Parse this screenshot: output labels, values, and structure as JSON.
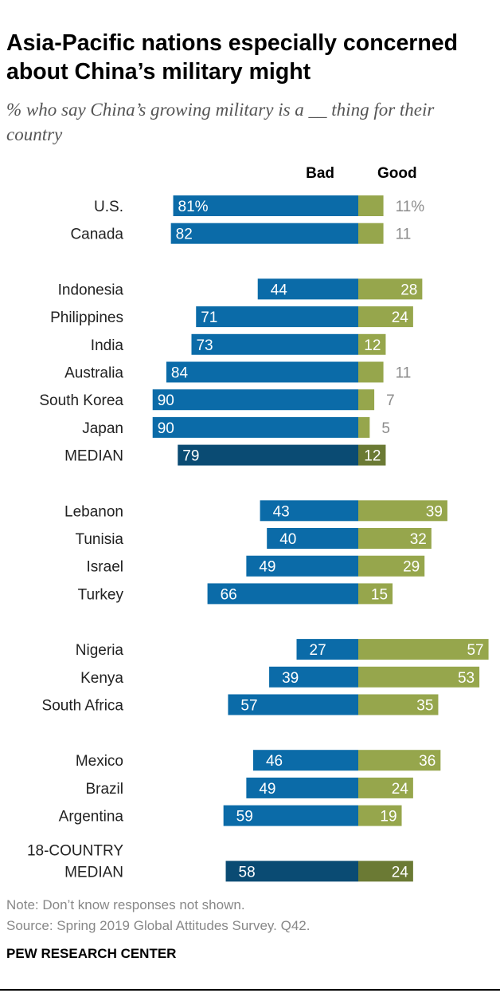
{
  "title": "Asia-Pacific nations especially concerned about China’s military might",
  "subtitle": "% who say China’s growing military is a __ thing for their country",
  "note": "Note: Don’t know responses not shown.",
  "source": "Source: Spring 2019 Global Attitudes Survey. Q42.",
  "organization": "PEW RESEARCH CENTER",
  "chart_data": {
    "type": "bar",
    "orientation": "horizontal-diverging",
    "series": [
      {
        "name": "Bad",
        "color": "#0b6ba8",
        "median_color": "#0a4b73"
      },
      {
        "name": "Good",
        "color": "#96a64c",
        "median_color": "#6b7a34"
      }
    ],
    "groups": [
      {
        "rows": [
          {
            "label": "U.S.",
            "bad": 81,
            "good": 11,
            "bad_label": "81%",
            "good_label": "11%"
          },
          {
            "label": "Canada",
            "bad": 82,
            "good": 11
          }
        ]
      },
      {
        "rows": [
          {
            "label": "Indonesia",
            "bad": 44,
            "good": 28
          },
          {
            "label": "Philippines",
            "bad": 71,
            "good": 24
          },
          {
            "label": "India",
            "bad": 73,
            "good": 12
          },
          {
            "label": "Australia",
            "bad": 84,
            "good": 11
          },
          {
            "label": "South Korea",
            "bad": 90,
            "good": 7
          },
          {
            "label": "Japan",
            "bad": 90,
            "good": 5
          },
          {
            "label": "MEDIAN",
            "bad": 79,
            "good": 12,
            "median": true
          }
        ]
      },
      {
        "rows": [
          {
            "label": "Lebanon",
            "bad": 43,
            "good": 39
          },
          {
            "label": "Tunisia",
            "bad": 40,
            "good": 32
          },
          {
            "label": "Israel",
            "bad": 49,
            "good": 29
          },
          {
            "label": "Turkey",
            "bad": 66,
            "good": 15
          }
        ]
      },
      {
        "rows": [
          {
            "label": "Nigeria",
            "bad": 27,
            "good": 57
          },
          {
            "label": "Kenya",
            "bad": 39,
            "good": 53
          },
          {
            "label": "South Africa",
            "bad": 57,
            "good": 35
          }
        ]
      },
      {
        "rows": [
          {
            "label": "Mexico",
            "bad": 46,
            "good": 36
          },
          {
            "label": "Brazil",
            "bad": 49,
            "good": 24
          },
          {
            "label": "Argentina",
            "bad": 59,
            "good": 19
          }
        ]
      },
      {
        "rows": [
          {
            "label": "18-COUNTRY MEDIAN",
            "label_lines": [
              "18-COUNTRY",
              "MEDIAN"
            ],
            "bad": 58,
            "good": 24,
            "median": true
          }
        ]
      }
    ]
  }
}
